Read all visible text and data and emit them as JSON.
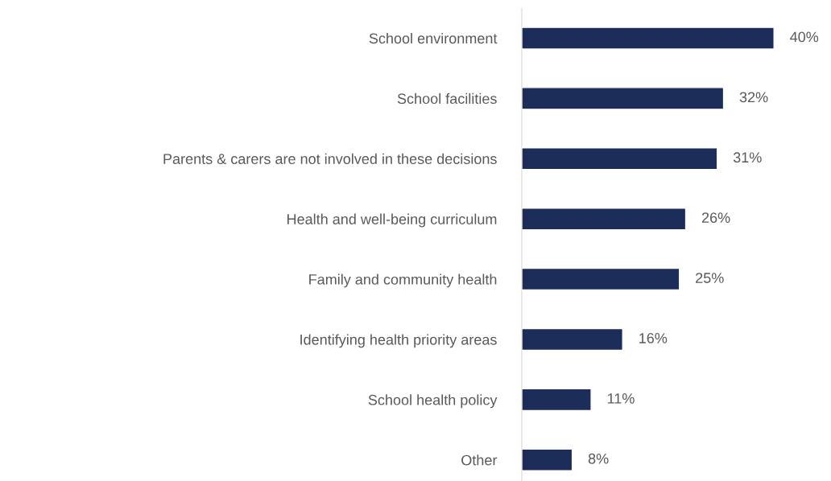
{
  "chart_data": {
    "type": "bar",
    "orientation": "horizontal",
    "categories": [
      "School environment",
      "School facilities",
      "Parents & carers are not involved in these decisions",
      "Health and well-being curriculum",
      "Family and community health",
      "Identifying health priority areas",
      "School health policy",
      "Other"
    ],
    "values": [
      40,
      32,
      31,
      26,
      25,
      16,
      11,
      8
    ],
    "value_labels": [
      "40%",
      "32%",
      "31%",
      "26%",
      "25%",
      "16%",
      "11%",
      "8%"
    ],
    "color": "#1c2d5a",
    "grid": false,
    "legend": false
  }
}
